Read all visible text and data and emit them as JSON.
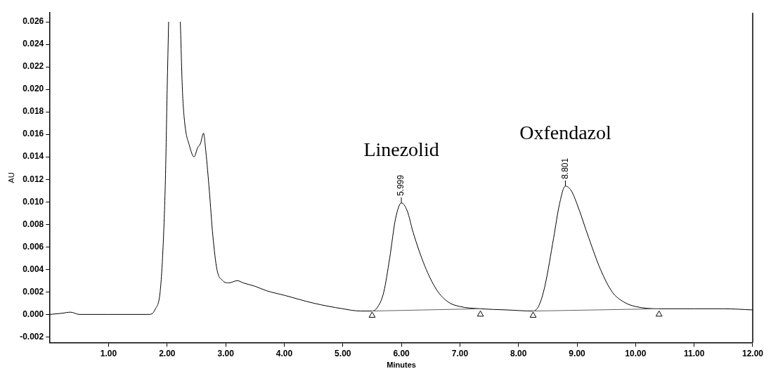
{
  "chart_data": {
    "type": "line",
    "xlabel": "Minutes",
    "ylabel": "AU",
    "xlim": [
      0,
      12
    ],
    "ylim": [
      -0.0025,
      0.0268
    ],
    "xticks": [
      {
        "value": 1,
        "label": "1.00"
      },
      {
        "value": 2,
        "label": "2.00"
      },
      {
        "value": 3,
        "label": "3.00"
      },
      {
        "value": 4,
        "label": "4.00"
      },
      {
        "value": 5,
        "label": "5.00"
      },
      {
        "value": 6,
        "label": "6.00"
      },
      {
        "value": 7,
        "label": "7.00"
      },
      {
        "value": 8,
        "label": "8.00"
      },
      {
        "value": 9,
        "label": "9.00"
      },
      {
        "value": 10,
        "label": "10.00"
      },
      {
        "value": 11,
        "label": "11.00"
      },
      {
        "value": 12,
        "label": "12.00"
      }
    ],
    "yticks": [
      {
        "value": -0.002,
        "label": "-0.002"
      },
      {
        "value": 0,
        "label": "0.000"
      },
      {
        "value": 0.002,
        "label": "0.002"
      },
      {
        "value": 0.004,
        "label": "0.004"
      },
      {
        "value": 0.006,
        "label": "0.006"
      },
      {
        "value": 0.008,
        "label": "0.008"
      },
      {
        "value": 0.01,
        "label": "0.010"
      },
      {
        "value": 0.012,
        "label": "0.012"
      },
      {
        "value": 0.014,
        "label": "0.014"
      },
      {
        "value": 0.016,
        "label": "0.016"
      },
      {
        "value": 0.018,
        "label": "0.018"
      },
      {
        "value": 0.02,
        "label": "0.020"
      },
      {
        "value": 0.022,
        "label": "0.022"
      },
      {
        "value": 0.024,
        "label": "0.024"
      },
      {
        "value": 0.026,
        "label": "0.026"
      }
    ],
    "grid": false,
    "legend": false,
    "marker": "none",
    "line_style": "solid",
    "series": [
      {
        "color": "#000000",
        "x": [
          0,
          0.2,
          0.35,
          0.5,
          1.0,
          1.7,
          1.8,
          1.88,
          1.93,
          1.97,
          2.0,
          2.025,
          2.12,
          2.225,
          2.26,
          2.3,
          2.38,
          2.46,
          2.52,
          2.57,
          2.62,
          2.66,
          2.72,
          2.78,
          2.85,
          2.95,
          3.05,
          3.2,
          3.3,
          3.5,
          3.7,
          4.0,
          4.5,
          5.0,
          5.3,
          5.5,
          5.6,
          5.7,
          5.8,
          5.9,
          6.0,
          6.1,
          6.2,
          6.4,
          6.6,
          6.8,
          7.0,
          7.35,
          7.8,
          8.25,
          8.35,
          8.45,
          8.6,
          8.7,
          8.8,
          8.9,
          9.0,
          9.2,
          9.4,
          9.6,
          9.8,
          10.0,
          10.4,
          11.0,
          11.5,
          12.0
        ],
        "values": [
          0,
          0.0001,
          0.0002,
          0,
          0,
          0,
          0.0005,
          0.002,
          0.006,
          0.012,
          0.02,
          0.026,
          null,
          0.026,
          0.02,
          0.017,
          0.015,
          0.014,
          0.0148,
          0.0152,
          0.0161,
          0.0145,
          0.011,
          0.007,
          0.004,
          0.003,
          0.0028,
          0.003,
          0.0028,
          0.0025,
          0.0021,
          0.0017,
          0.001,
          0.0005,
          0.0003,
          0.0003,
          0.0007,
          0.002,
          0.005,
          0.0085,
          0.0099,
          0.0092,
          0.0073,
          0.0043,
          0.0022,
          0.0011,
          0.0007,
          0.0005,
          0.0004,
          0.0003,
          0.0008,
          0.0025,
          0.0068,
          0.0098,
          0.0114,
          0.011,
          0.0098,
          0.0068,
          0.004,
          0.002,
          0.0011,
          0.0007,
          0.0005,
          0.0005,
          0.0005,
          0.0004
        ]
      },
      {
        "color": "#606060",
        "x": [
          5.5,
          7.35,
          7.8,
          8.25,
          10.4
        ],
        "values": [
          0.0003,
          0.0005,
          null,
          0.0003,
          0.0005
        ]
      },
      {
        "type": "scatter",
        "color": "#000000",
        "marker": "triangle",
        "x": [
          5.5,
          7.35,
          8.25,
          10.4
        ],
        "values": [
          -0.0001,
          0,
          -0.0001,
          0
        ]
      }
    ],
    "annotations": [
      "Linezolid",
      {
        "text": "5.999",
        "x": 5.999,
        "y": 0.0099
      },
      "Oxfendazol",
      {
        "text": "8.801",
        "x": 8.801,
        "y": 0.0114
      }
    ]
  }
}
